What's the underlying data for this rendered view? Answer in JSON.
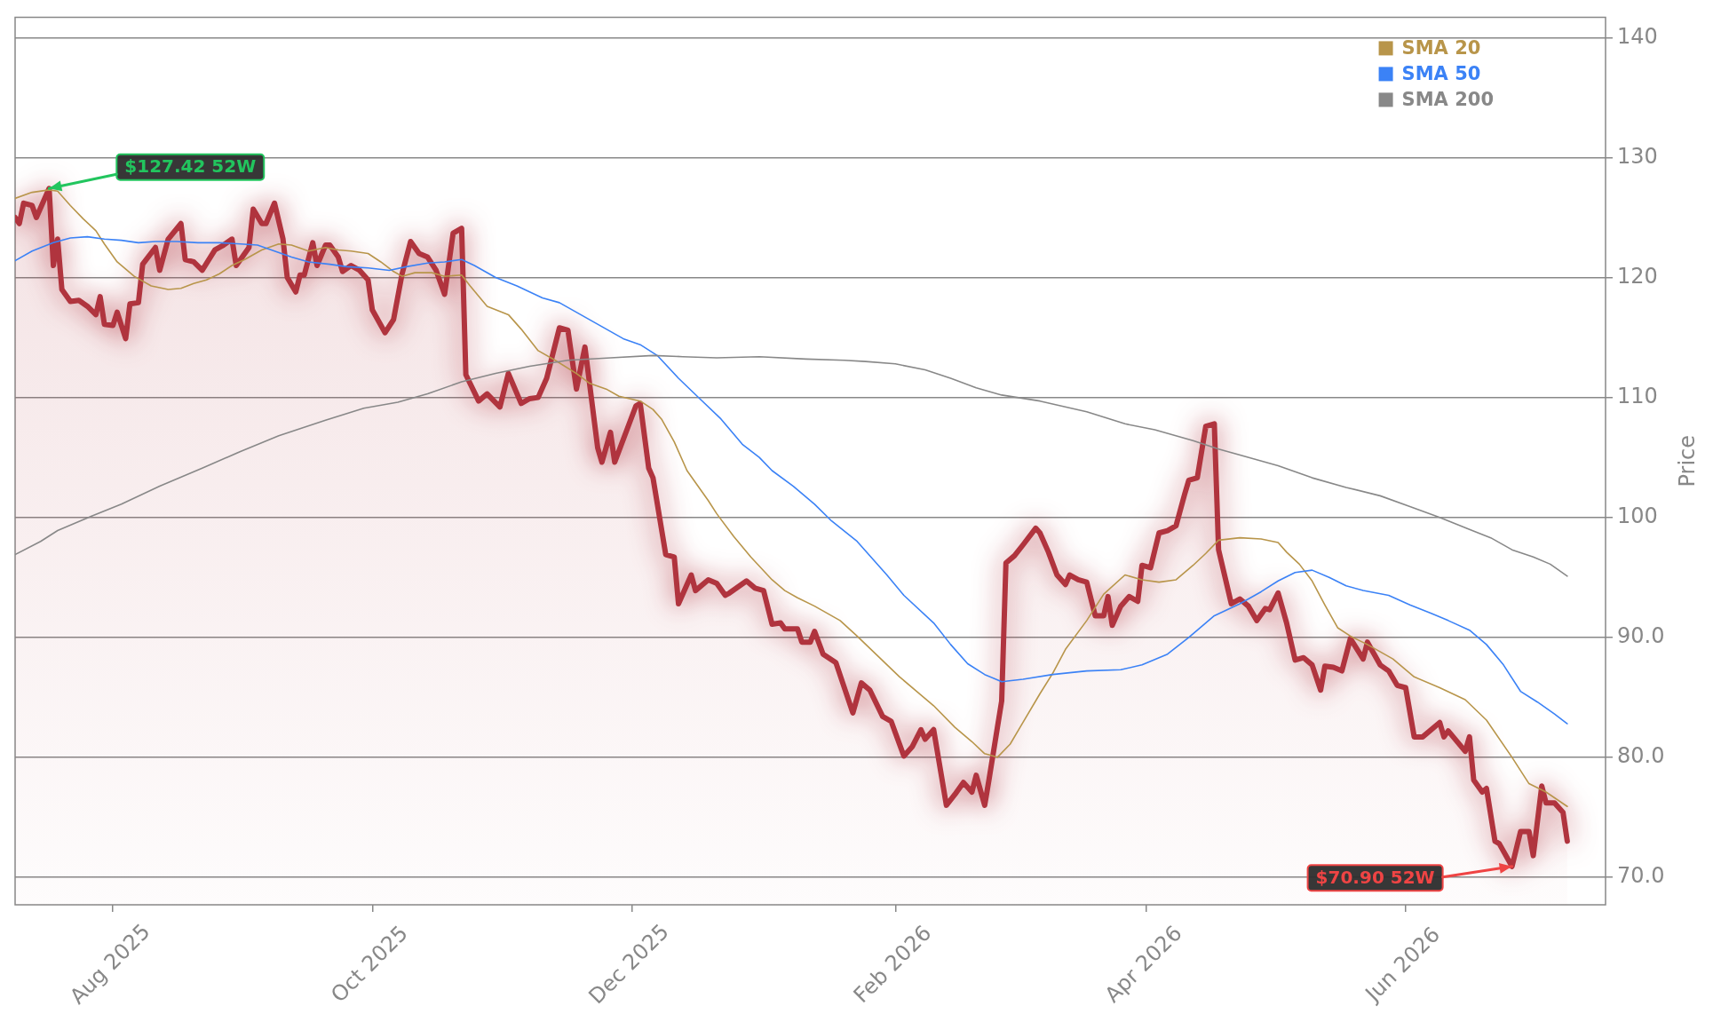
{
  "chart_data": {
    "type": "line",
    "ylabel": "Price",
    "xlim": [
      "2025-07-09",
      "2026-07-18"
    ],
    "xticks": [
      {
        "value": "2025-08-01",
        "label": "Aug 2025"
      },
      {
        "value": "2025-10-01",
        "label": "Oct 2025"
      },
      {
        "value": "2025-12-01",
        "label": "Dec 2025"
      },
      {
        "value": "2026-02-01",
        "label": "Feb 2026"
      },
      {
        "value": "2026-04-01",
        "label": "Apr 2026"
      },
      {
        "value": "2026-06-01",
        "label": "Jun 2026"
      }
    ],
    "ylim": [
      67.7,
      141.7
    ],
    "yticks": [
      {
        "value": 70,
        "label": "70.0"
      },
      {
        "value": 80,
        "label": "80.0"
      },
      {
        "value": 90,
        "label": "90.0"
      },
      100,
      110,
      120,
      130,
      140
    ],
    "grid": "y",
    "legend": "top right",
    "annotations": [
      {
        "text": "$127.42 52W",
        "x": "2025-07-17",
        "y": 127.42
      },
      {
        "text": "$70.90 52W",
        "x": "2026-06-26",
        "y": 70.9
      }
    ],
    "series": [
      {
        "type": "area",
        "color": "#b0343e",
        "x": [
          "2025-07-09",
          "2025-07-10",
          "2025-07-11",
          "2025-07-13",
          "2025-07-14",
          "2025-07-17",
          "2025-07-18",
          "2025-07-19",
          "2025-07-20",
          "2025-07-22",
          "2025-07-24",
          "2025-07-26",
          "2025-07-28",
          "2025-07-29",
          "2025-07-30",
          "2025-08-01",
          "2025-08-02",
          "2025-08-04",
          "2025-08-05",
          "2025-08-07",
          "2025-08-08",
          "2025-08-11",
          "2025-08-12",
          "2025-08-14",
          "2025-08-17",
          "2025-08-18",
          "2025-08-20",
          "2025-08-22",
          "2025-08-25",
          "2025-08-27",
          "2025-08-29",
          "2025-08-30",
          "2025-09-01",
          "2025-09-02",
          "2025-09-03",
          "2025-09-05",
          "2025-09-06",
          "2025-09-08",
          "2025-09-10",
          "2025-09-11",
          "2025-09-13",
          "2025-09-14",
          "2025-09-15",
          "2025-09-17",
          "2025-09-18",
          "2025-09-20",
          "2025-09-21",
          "2025-09-23",
          "2025-09-24",
          "2025-09-26",
          "2025-09-28",
          "2025-09-30",
          "2025-10-01",
          "2025-10-04",
          "2025-10-06",
          "2025-10-08",
          "2025-10-10",
          "2025-10-12",
          "2025-10-14",
          "2025-10-16",
          "2025-10-18",
          "2025-10-20",
          "2025-10-22",
          "2025-10-23",
          "2025-10-26",
          "2025-10-28",
          "2025-10-31",
          "2025-11-02",
          "2025-11-05",
          "2025-11-07",
          "2025-11-09",
          "2025-11-11",
          "2025-11-14",
          "2025-11-16",
          "2025-11-18",
          "2025-11-20",
          "2025-11-23",
          "2025-11-24",
          "2025-11-26",
          "2025-11-27",
          "2025-12-02",
          "2025-12-03",
          "2025-12-05",
          "2025-12-06",
          "2025-12-09",
          "2025-12-11",
          "2025-12-12",
          "2025-12-15",
          "2025-12-16",
          "2025-12-19",
          "2025-12-21",
          "2025-12-23",
          "2025-12-24",
          "2025-12-28",
          "2025-12-30",
          "2026-01-01",
          "2026-01-03",
          "2026-01-05",
          "2026-01-06",
          "2026-01-09",
          "2026-01-10",
          "2026-01-12",
          "2026-01-13",
          "2026-01-15",
          "2026-01-18",
          "2026-01-22",
          "2026-01-24",
          "2026-01-26",
          "2026-01-29",
          "2026-01-31",
          "2026-02-03",
          "2026-02-05",
          "2026-02-07",
          "2026-02-08",
          "2026-02-10",
          "2026-02-13",
          "2026-02-15",
          "2026-02-17",
          "2026-02-19",
          "2026-02-20",
          "2026-02-22",
          "2026-02-23",
          "2026-02-25",
          "2026-02-26",
          "2026-02-27",
          "2026-03-01",
          "2026-03-03",
          "2026-03-06",
          "2026-03-07",
          "2026-03-09",
          "2026-03-11",
          "2026-03-13",
          "2026-03-14",
          "2026-03-16",
          "2026-03-18",
          "2026-03-20",
          "2026-03-22",
          "2026-03-23",
          "2026-03-24",
          "2026-03-26",
          "2026-03-28",
          "2026-03-30",
          "2026-03-31",
          "2026-04-02",
          "2026-04-04",
          "2026-04-06",
          "2026-04-08",
          "2026-04-10",
          "2026-04-11",
          "2026-04-13",
          "2026-04-15",
          "2026-04-17",
          "2026-04-18",
          "2026-04-21",
          "2026-04-23",
          "2026-04-25",
          "2026-04-27",
          "2026-04-29",
          "2026-04-30",
          "2026-05-02",
          "2026-05-04",
          "2026-05-06",
          "2026-05-08",
          "2026-05-10",
          "2026-05-12",
          "2026-05-13",
          "2026-05-15",
          "2026-05-17",
          "2026-05-19",
          "2026-05-22",
          "2026-05-23",
          "2026-05-26",
          "2026-05-28",
          "2026-05-30",
          "2026-06-01",
          "2026-06-03",
          "2026-06-05",
          "2026-06-09",
          "2026-06-10",
          "2026-06-11",
          "2026-06-15",
          "2026-06-16",
          "2026-06-17",
          "2026-06-19",
          "2026-06-20",
          "2026-06-22",
          "2026-06-23",
          "2026-06-26",
          "2026-06-28",
          "2026-06-30",
          "2026-07-01",
          "2026-07-03",
          "2026-07-04",
          "2026-07-06",
          "2026-07-08",
          "2026-07-09"
        ],
        "values": [
          125.0,
          124.5,
          126.2,
          126.0,
          125.0,
          127.42,
          121.0,
          123.2,
          119.0,
          118.0,
          118.1,
          117.6,
          116.9,
          118.4,
          116.1,
          116.0,
          117.1,
          114.9,
          117.8,
          117.9,
          121.1,
          122.5,
          120.6,
          123.2,
          124.5,
          121.5,
          121.3,
          120.6,
          122.3,
          122.7,
          123.2,
          121.0,
          122.0,
          122.5,
          125.7,
          124.5,
          124.5,
          126.2,
          123.2,
          120.0,
          118.8,
          120.2,
          120.2,
          122.9,
          121.0,
          122.7,
          122.7,
          121.7,
          120.5,
          121.0,
          120.6,
          119.8,
          117.3,
          115.4,
          116.5,
          120.3,
          123.0,
          122.0,
          121.7,
          120.6,
          118.6,
          123.7,
          124.1,
          111.9,
          109.7,
          110.3,
          109.2,
          112.0,
          109.5,
          109.9,
          110.0,
          111.6,
          115.8,
          115.6,
          110.7,
          114.2,
          105.8,
          104.6,
          107.1,
          104.6,
          109.3,
          109.5,
          104.1,
          103.3,
          96.9,
          96.7,
          92.8,
          95.2,
          93.9,
          94.8,
          94.5,
          93.5,
          93.7,
          94.7,
          94.1,
          93.9,
          91.1,
          91.2,
          90.7,
          90.7,
          89.6,
          89.6,
          90.5,
          88.6,
          87.9,
          83.7,
          86.2,
          85.6,
          83.4,
          83.0,
          80.1,
          80.9,
          82.3,
          81.5,
          82.3,
          76.0,
          76.9,
          77.9,
          77.1,
          78.5,
          76.0,
          78.1,
          82.5,
          84.7,
          96.2,
          96.8,
          97.7,
          99.1,
          98.7,
          97.1,
          95.2,
          94.4,
          95.2,
          94.8,
          94.6,
          91.8,
          91.8,
          93.4,
          91.0,
          92.6,
          93.4,
          93.0,
          96.0,
          95.8,
          98.7,
          98.9,
          99.3,
          101.9,
          103.1,
          103.3,
          107.6,
          107.8,
          97.3,
          92.8,
          93.2,
          92.6,
          91.4,
          92.4,
          92.3,
          93.7,
          91.2,
          88.1,
          88.3,
          87.7,
          85.6,
          87.6,
          87.5,
          87.2,
          89.9,
          88.2,
          89.6,
          87.7,
          87.2,
          86.0,
          85.8,
          81.7,
          81.7,
          82.9,
          81.7,
          82.2,
          80.5,
          81.7,
          78.1,
          77.1,
          77.4,
          73.0,
          72.8,
          70.9,
          73.8,
          73.8,
          71.8,
          77.6,
          76.2,
          76.2,
          75.4,
          73.0
        ]
      },
      {
        "name": "SMA 20",
        "color": "#b8954a",
        "x": [
          "2025-07-09",
          "2025-07-13",
          "2025-07-17",
          "2025-07-19",
          "2025-07-22",
          "2025-07-25",
          "2025-07-28",
          "2025-07-30",
          "2025-08-02",
          "2025-08-06",
          "2025-08-10",
          "2025-08-14",
          "2025-08-17",
          "2025-08-20",
          "2025-08-23",
          "2025-08-26",
          "2025-08-29",
          "2025-09-01",
          "2025-09-05",
          "2025-09-09",
          "2025-09-12",
          "2025-09-16",
          "2025-09-20",
          "2025-09-23",
          "2025-09-26",
          "2025-09-30",
          "2025-10-03",
          "2025-10-06",
          "2025-10-08",
          "2025-10-11",
          "2025-10-15",
          "2025-10-18",
          "2025-10-22",
          "2025-10-24",
          "2025-10-28",
          "2025-11-02",
          "2025-11-05",
          "2025-11-09",
          "2025-11-13",
          "2025-11-18",
          "2025-11-21",
          "2025-11-25",
          "2025-11-28",
          "2025-12-03",
          "2025-12-06",
          "2025-12-08",
          "2025-12-11",
          "2025-12-14",
          "2025-12-19",
          "2025-12-21",
          "2025-12-25",
          "2025-12-29",
          "2026-01-03",
          "2026-01-06",
          "2026-01-09",
          "2026-01-13",
          "2026-01-19",
          "2026-01-23",
          "2026-01-28",
          "2026-02-02",
          "2026-02-06",
          "2026-02-10",
          "2026-02-15",
          "2026-02-19",
          "2026-02-22",
          "2026-02-25",
          "2026-02-28",
          "2026-03-03",
          "2026-03-07",
          "2026-03-10",
          "2026-03-13",
          "2026-03-18",
          "2026-03-22",
          "2026-03-27",
          "2026-03-31",
          "2026-04-04",
          "2026-04-08",
          "2026-04-12",
          "2026-04-15",
          "2026-04-18",
          "2026-04-23",
          "2026-04-28",
          "2026-05-02",
          "2026-05-04",
          "2026-05-07",
          "2026-05-10",
          "2026-05-13",
          "2026-05-16",
          "2026-05-19",
          "2026-05-23",
          "2026-05-29",
          "2026-06-03",
          "2026-06-09",
          "2026-06-15",
          "2026-06-20",
          "2026-06-26",
          "2026-06-30",
          "2026-07-04",
          "2026-07-09"
        ],
        "values": [
          126.6,
          127.1,
          127.3,
          127.2,
          126.0,
          124.9,
          123.9,
          122.8,
          121.3,
          120.1,
          119.3,
          119.0,
          119.1,
          119.5,
          119.8,
          120.3,
          121.0,
          121.5,
          122.3,
          122.8,
          122.7,
          122.2,
          122.5,
          122.3,
          122.2,
          122.0,
          121.3,
          120.5,
          120.1,
          120.4,
          120.4,
          120.1,
          120.2,
          119.3,
          117.6,
          116.9,
          115.7,
          113.9,
          113.1,
          112.0,
          111.2,
          110.7,
          110.1,
          109.7,
          109.0,
          108.2,
          106.3,
          103.9,
          101.4,
          100.3,
          98.4,
          96.7,
          94.8,
          93.9,
          93.3,
          92.6,
          91.4,
          90.1,
          88.4,
          86.7,
          85.5,
          84.3,
          82.5,
          81.3,
          80.3,
          80.0,
          81.1,
          82.9,
          85.3,
          87.0,
          89.0,
          91.4,
          93.6,
          95.2,
          94.8,
          94.6,
          94.8,
          96.0,
          97.0,
          98.1,
          98.3,
          98.2,
          97.9,
          97.1,
          96.1,
          94.7,
          92.7,
          90.8,
          90.1,
          89.4,
          88.2,
          86.7,
          85.8,
          84.8,
          83.1,
          80.0,
          77.8,
          77.1,
          75.9
        ]
      },
      {
        "name": "SMA 50",
        "color": "#3b82f6",
        "x": [
          "2025-07-09",
          "2025-07-13",
          "2025-07-18",
          "2025-07-22",
          "2025-07-26",
          "2025-07-30",
          "2025-08-03",
          "2025-08-07",
          "2025-08-11",
          "2025-08-16",
          "2025-08-21",
          "2025-08-26",
          "2025-08-31",
          "2025-09-04",
          "2025-09-08",
          "2025-09-12",
          "2025-09-16",
          "2025-09-21",
          "2025-09-25",
          "2025-09-30",
          "2025-10-05",
          "2025-10-09",
          "2025-10-14",
          "2025-10-18",
          "2025-10-22",
          "2025-10-25",
          "2025-10-30",
          "2025-11-04",
          "2025-11-10",
          "2025-11-14",
          "2025-11-19",
          "2025-11-24",
          "2025-11-29",
          "2025-12-03",
          "2025-12-07",
          "2025-12-12",
          "2025-12-17",
          "2025-12-22",
          "2025-12-27",
          "2025-12-31",
          "2026-01-03",
          "2026-01-08",
          "2026-01-13",
          "2026-01-17",
          "2026-01-23",
          "2026-01-30",
          "2026-02-03",
          "2026-02-10",
          "2026-02-14",
          "2026-02-18",
          "2026-02-22",
          "2026-02-26",
          "2026-03-03",
          "2026-03-10",
          "2026-03-18",
          "2026-03-26",
          "2026-03-31",
          "2026-04-06",
          "2026-04-11",
          "2026-04-17",
          "2026-04-23",
          "2026-04-28",
          "2026-05-02",
          "2026-05-06",
          "2026-05-10",
          "2026-05-14",
          "2026-05-18",
          "2026-05-22",
          "2026-05-28",
          "2026-06-02",
          "2026-06-07",
          "2026-06-11",
          "2026-06-16",
          "2026-06-20",
          "2026-06-24",
          "2026-06-28",
          "2026-07-02",
          "2026-07-06",
          "2026-07-09"
        ],
        "values": [
          121.4,
          122.2,
          122.9,
          123.3,
          123.4,
          123.2,
          123.1,
          122.9,
          123.0,
          123.0,
          122.9,
          122.9,
          122.8,
          122.7,
          122.2,
          121.7,
          121.3,
          121.1,
          120.9,
          120.8,
          120.6,
          120.9,
          121.2,
          121.3,
          121.5,
          121.0,
          120.0,
          119.3,
          118.3,
          117.9,
          116.9,
          115.9,
          114.9,
          114.4,
          113.5,
          111.6,
          109.9,
          108.2,
          106.1,
          105.0,
          103.9,
          102.6,
          101.1,
          99.7,
          98.0,
          95.2,
          93.5,
          91.2,
          89.4,
          87.8,
          86.9,
          86.3,
          86.5,
          86.9,
          87.2,
          87.3,
          87.7,
          88.6,
          90.0,
          91.8,
          92.8,
          93.8,
          94.7,
          95.4,
          95.6,
          95.0,
          94.3,
          93.9,
          93.5,
          92.7,
          92.0,
          91.4,
          90.6,
          89.4,
          87.7,
          85.5,
          84.6,
          83.6,
          82.8
        ]
      },
      {
        "name": "SMA 200",
        "color": "#888888",
        "x": [
          "2025-07-09",
          "2025-07-15",
          "2025-07-19",
          "2025-07-27",
          "2025-08-03",
          "2025-08-12",
          "2025-08-22",
          "2025-08-31",
          "2025-09-09",
          "2025-09-20",
          "2025-09-29",
          "2025-10-07",
          "2025-10-14",
          "2025-10-22",
          "2025-10-30",
          "2025-11-07",
          "2025-11-16",
          "2025-11-26",
          "2025-12-06",
          "2025-12-13",
          "2025-12-21",
          "2025-12-31",
          "2026-01-11",
          "2026-01-20",
          "2026-01-25",
          "2026-02-01",
          "2026-02-08",
          "2026-02-14",
          "2026-02-20",
          "2026-02-26",
          "2026-03-07",
          "2026-03-18",
          "2026-03-27",
          "2026-04-03",
          "2026-04-12",
          "2026-04-18",
          "2026-04-24",
          "2026-05-02",
          "2026-05-10",
          "2026-05-18",
          "2026-05-26",
          "2026-06-02",
          "2026-06-09",
          "2026-06-16",
          "2026-06-21",
          "2026-06-26",
          "2026-07-01",
          "2026-07-05",
          "2026-07-09"
        ],
        "values": [
          96.9,
          98.0,
          98.9,
          100.1,
          101.1,
          102.6,
          104.1,
          105.5,
          106.8,
          108.1,
          109.1,
          109.6,
          110.3,
          111.3,
          112.0,
          112.6,
          113.1,
          113.3,
          113.5,
          113.4,
          113.3,
          113.4,
          113.2,
          113.1,
          113.0,
          112.8,
          112.3,
          111.6,
          110.8,
          110.2,
          109.7,
          108.8,
          107.8,
          107.3,
          106.4,
          105.7,
          105.1,
          104.3,
          103.3,
          102.5,
          101.8,
          100.9,
          100.0,
          99.0,
          98.3,
          97.3,
          96.7,
          96.1,
          95.1
        ]
      }
    ]
  }
}
